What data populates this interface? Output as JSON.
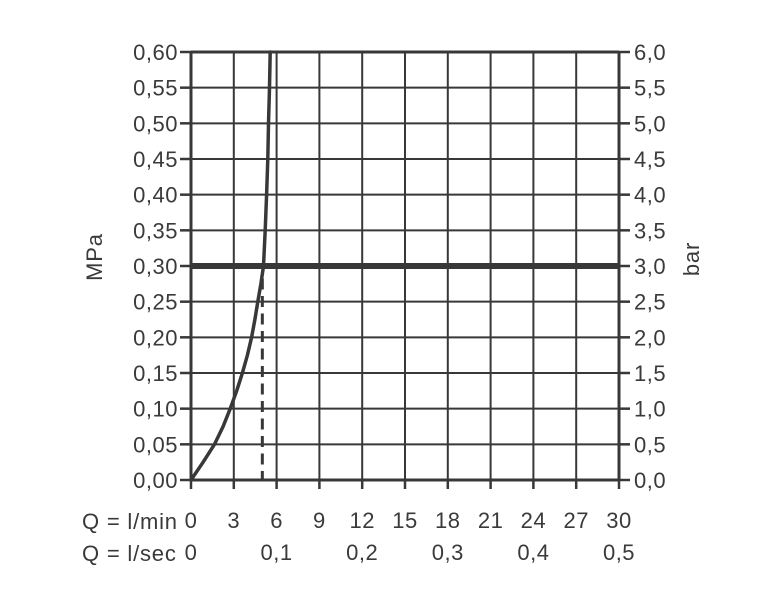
{
  "page": {
    "background": "#ffffff"
  },
  "chart_data": {
    "type": "line",
    "grid": true,
    "colors": {
      "line": "#383838",
      "text": "#3a3a3a",
      "background": "#ffffff"
    },
    "x_axis": {
      "primary": {
        "label": "Q = l/min",
        "min": 0,
        "max": 30,
        "step": 3,
        "ticks": [
          "0",
          "3",
          "6",
          "9",
          "12",
          "15",
          "18",
          "21",
          "24",
          "27",
          "30"
        ]
      },
      "secondary": {
        "label": "Q = l/sec",
        "ticks": [
          {
            "text": "0",
            "at_lmin": 0
          },
          {
            "text": "0,1",
            "at_lmin": 6
          },
          {
            "text": "0,2",
            "at_lmin": 12
          },
          {
            "text": "0,3",
            "at_lmin": 18
          },
          {
            "text": "0,4",
            "at_lmin": 24
          },
          {
            "text": "0,5",
            "at_lmin": 30
          }
        ]
      }
    },
    "y_axis_left": {
      "label": "MPa",
      "min": 0,
      "max": 0.6,
      "step": 0.05,
      "ticks": [
        "0,60",
        "0,55",
        "0,50",
        "0,45",
        "0,40",
        "0,35",
        "0,30",
        "0,25",
        "0,20",
        "0,15",
        "0,10",
        "0,05",
        "0,00"
      ]
    },
    "y_axis_right": {
      "label": "bar",
      "min": 0,
      "max": 6,
      "step": 0.5,
      "ticks": [
        "6,0",
        "5,5",
        "5,0",
        "4,5",
        "4,0",
        "3,5",
        "3,0",
        "2,5",
        "2,0",
        "1,5",
        "1,0",
        "0,5",
        "0,0"
      ]
    },
    "series": [
      {
        "name": "flow-pressure-curve",
        "points_lmin_mpa": [
          [
            0,
            0
          ],
          [
            0.85,
            0.025
          ],
          [
            1.65,
            0.05
          ],
          [
            2.25,
            0.075
          ],
          [
            2.75,
            0.1
          ],
          [
            3.2,
            0.125
          ],
          [
            3.6,
            0.15
          ],
          [
            3.95,
            0.175
          ],
          [
            4.25,
            0.2
          ],
          [
            4.48,
            0.225
          ],
          [
            4.68,
            0.25
          ],
          [
            4.9,
            0.275
          ],
          [
            5.08,
            0.3
          ],
          [
            5.2,
            0.35
          ],
          [
            5.3,
            0.4
          ],
          [
            5.38,
            0.45
          ],
          [
            5.43,
            0.5
          ],
          [
            5.5,
            0.55
          ],
          [
            5.55,
            0.6
          ]
        ]
      }
    ],
    "reference_line": {
      "mpa": 0.3,
      "bar": 3.0
    },
    "dashed_marker_lmin": 5.0
  }
}
